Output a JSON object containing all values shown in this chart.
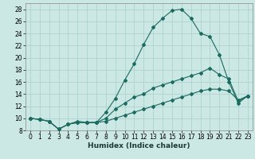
{
  "title": "",
  "xlabel": "Humidex (Indice chaleur)",
  "background_color": "#cce8e4",
  "grid_color": "#aacfcb",
  "line_color": "#1a6b60",
  "xlim": [
    -0.5,
    23.5
  ],
  "ylim": [
    8,
    29
  ],
  "yticks": [
    8,
    10,
    12,
    14,
    16,
    18,
    20,
    22,
    24,
    26,
    28
  ],
  "xticks": [
    0,
    1,
    2,
    3,
    4,
    5,
    6,
    7,
    8,
    9,
    10,
    11,
    12,
    13,
    14,
    15,
    16,
    17,
    18,
    19,
    20,
    21,
    22,
    23
  ],
  "line1_x": [
    0,
    1,
    2,
    3,
    4,
    5,
    6,
    7,
    8,
    9,
    10,
    11,
    12,
    13,
    14,
    15,
    16,
    17,
    18,
    19,
    20,
    21,
    22,
    23
  ],
  "line1_y": [
    10.0,
    9.8,
    9.5,
    8.2,
    9.0,
    9.5,
    9.3,
    9.3,
    11.0,
    13.3,
    16.3,
    19.0,
    22.2,
    25.0,
    26.5,
    27.8,
    28.0,
    26.5,
    24.0,
    23.5,
    20.5,
    16.0,
    12.5,
    13.7
  ],
  "line2_x": [
    0,
    1,
    2,
    3,
    4,
    5,
    6,
    7,
    8,
    9,
    10,
    11,
    12,
    13,
    14,
    15,
    16,
    17,
    18,
    19,
    20,
    21,
    22,
    23
  ],
  "line2_y": [
    10.0,
    9.8,
    9.5,
    8.2,
    9.0,
    9.3,
    9.3,
    9.3,
    10.0,
    11.5,
    12.5,
    13.5,
    14.0,
    15.0,
    15.5,
    16.0,
    16.5,
    17.0,
    17.5,
    18.3,
    17.2,
    16.5,
    12.8,
    13.7
  ],
  "line3_x": [
    0,
    1,
    2,
    3,
    4,
    5,
    6,
    7,
    8,
    9,
    10,
    11,
    12,
    13,
    14,
    15,
    16,
    17,
    18,
    19,
    20,
    21,
    22,
    23
  ],
  "line3_y": [
    10.0,
    9.8,
    9.5,
    8.2,
    9.0,
    9.3,
    9.3,
    9.3,
    9.5,
    10.0,
    10.5,
    11.0,
    11.5,
    12.0,
    12.5,
    13.0,
    13.5,
    14.0,
    14.5,
    14.8,
    14.8,
    14.5,
    13.0,
    13.7
  ],
  "tick_fontsize": 5.5,
  "xlabel_fontsize": 6.5,
  "marker_size": 2.0,
  "line_width": 0.8
}
